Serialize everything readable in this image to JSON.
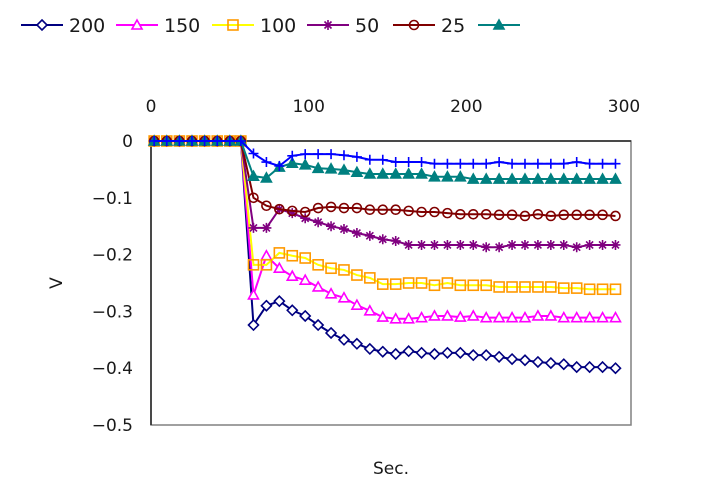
{
  "chart_data": {
    "type": "line",
    "title": "",
    "xlabel": "Sec.",
    "ylabel": "V",
    "xlim": [
      0,
      300
    ],
    "ylim": [
      -0.5,
      0
    ],
    "x_ticks": [
      0,
      100,
      200,
      300
    ],
    "x_tick_labels": [
      "0",
      "100",
      "200",
      "300"
    ],
    "y_ticks": [
      0,
      -0.1,
      -0.2,
      -0.3,
      -0.4,
      -0.5
    ],
    "y_tick_labels": [
      "0",
      "−0.1",
      "−0.2",
      "−0.3",
      "−0.4",
      "−0.5"
    ],
    "x_axis_position": "top",
    "grid": false,
    "legend_position": "top",
    "x_flat": [
      2,
      10,
      18,
      26,
      34,
      42,
      50,
      57
    ],
    "x_response": [
      65,
      73.2,
      81.4,
      89.6,
      97.8,
      106,
      114.2,
      122.4,
      130.6,
      138.8,
      147,
      155.2,
      163.4,
      171.6,
      179.8,
      188,
      196.2,
      204.4,
      212.6,
      220.8,
      229,
      237.2,
      245.4,
      253.6,
      261.8,
      270,
      278.2,
      286.4,
      294.6
    ],
    "series": [
      {
        "name": "200",
        "color": "#000080",
        "marker": "diamond",
        "marker_fill": "none",
        "values": [
          -0.324,
          -0.29,
          -0.282,
          -0.298,
          -0.308,
          -0.324,
          -0.338,
          -0.35,
          -0.357,
          -0.366,
          -0.371,
          -0.375,
          -0.37,
          -0.373,
          -0.375,
          -0.373,
          -0.373,
          -0.377,
          -0.377,
          -0.38,
          -0.384,
          -0.386,
          -0.389,
          -0.391,
          -0.393,
          -0.398,
          -0.398,
          -0.398,
          -0.4
        ]
      },
      {
        "name": "150",
        "color": "#ff00ff",
        "marker": "triangle",
        "marker_fill": "none",
        "values": [
          -0.271,
          -0.202,
          -0.224,
          -0.238,
          -0.245,
          -0.257,
          -0.269,
          -0.276,
          -0.289,
          -0.299,
          -0.31,
          -0.313,
          -0.313,
          -0.311,
          -0.308,
          -0.308,
          -0.31,
          -0.308,
          -0.311,
          -0.311,
          -0.311,
          -0.311,
          -0.308,
          -0.308,
          -0.311,
          -0.311,
          -0.311,
          -0.311,
          -0.311
        ]
      },
      {
        "name": "100",
        "color": "#ffff00",
        "marker": "square",
        "marker_color": "#ff9900",
        "marker_fill": "none",
        "values": [
          -0.218,
          -0.218,
          -0.197,
          -0.202,
          -0.206,
          -0.218,
          -0.224,
          -0.227,
          -0.236,
          -0.241,
          -0.252,
          -0.252,
          -0.25,
          -0.25,
          -0.254,
          -0.25,
          -0.254,
          -0.254,
          -0.254,
          -0.257,
          -0.257,
          -0.257,
          -0.257,
          -0.257,
          -0.259,
          -0.259,
          -0.261,
          -0.261,
          -0.261
        ]
      },
      {
        "name": "50",
        "color": "#800080",
        "marker": "asterisk",
        "marker_fill": "none",
        "values": [
          -0.153,
          -0.153,
          -0.12,
          -0.127,
          -0.136,
          -0.143,
          -0.15,
          -0.155,
          -0.162,
          -0.167,
          -0.173,
          -0.176,
          -0.183,
          -0.183,
          -0.183,
          -0.183,
          -0.183,
          -0.183,
          -0.187,
          -0.187,
          -0.183,
          -0.183,
          -0.183,
          -0.183,
          -0.183,
          -0.187,
          -0.183,
          -0.183,
          -0.183
        ]
      },
      {
        "name": "25",
        "color": "#800000",
        "marker": "circle",
        "marker_fill": "none",
        "values": [
          -0.1,
          -0.114,
          -0.12,
          -0.123,
          -0.125,
          -0.118,
          -0.116,
          -0.118,
          -0.118,
          -0.121,
          -0.121,
          -0.121,
          -0.123,
          -0.125,
          -0.125,
          -0.127,
          -0.129,
          -0.129,
          -0.129,
          -0.13,
          -0.13,
          -0.132,
          -0.129,
          -0.132,
          -0.13,
          -0.13,
          -0.13,
          -0.13,
          -0.132
        ]
      },
      {
        "name": "",
        "color": "#008080",
        "marker": "filled-triangle",
        "marker_fill": "#008080",
        "values": [
          -0.062,
          -0.065,
          -0.046,
          -0.039,
          -0.042,
          -0.048,
          -0.049,
          -0.051,
          -0.055,
          -0.058,
          -0.058,
          -0.058,
          -0.058,
          -0.058,
          -0.063,
          -0.063,
          -0.063,
          -0.067,
          -0.067,
          -0.067,
          -0.067,
          -0.067,
          -0.067,
          -0.067,
          -0.067,
          -0.067,
          -0.067,
          -0.067,
          -0.067
        ]
      },
      {
        "name": "",
        "color": "#0000ff",
        "marker": "plus",
        "marker_fill": "none",
        "in_visible_legend": false,
        "values": [
          -0.022,
          -0.037,
          -0.044,
          -0.026,
          -0.023,
          -0.023,
          -0.023,
          -0.025,
          -0.028,
          -0.033,
          -0.033,
          -0.037,
          -0.037,
          -0.037,
          -0.04,
          -0.04,
          -0.04,
          -0.04,
          -0.04,
          -0.037,
          -0.04,
          -0.04,
          -0.04,
          -0.04,
          -0.04,
          -0.037,
          -0.04,
          -0.04,
          -0.04
        ]
      }
    ],
    "flat_value": 0
  }
}
